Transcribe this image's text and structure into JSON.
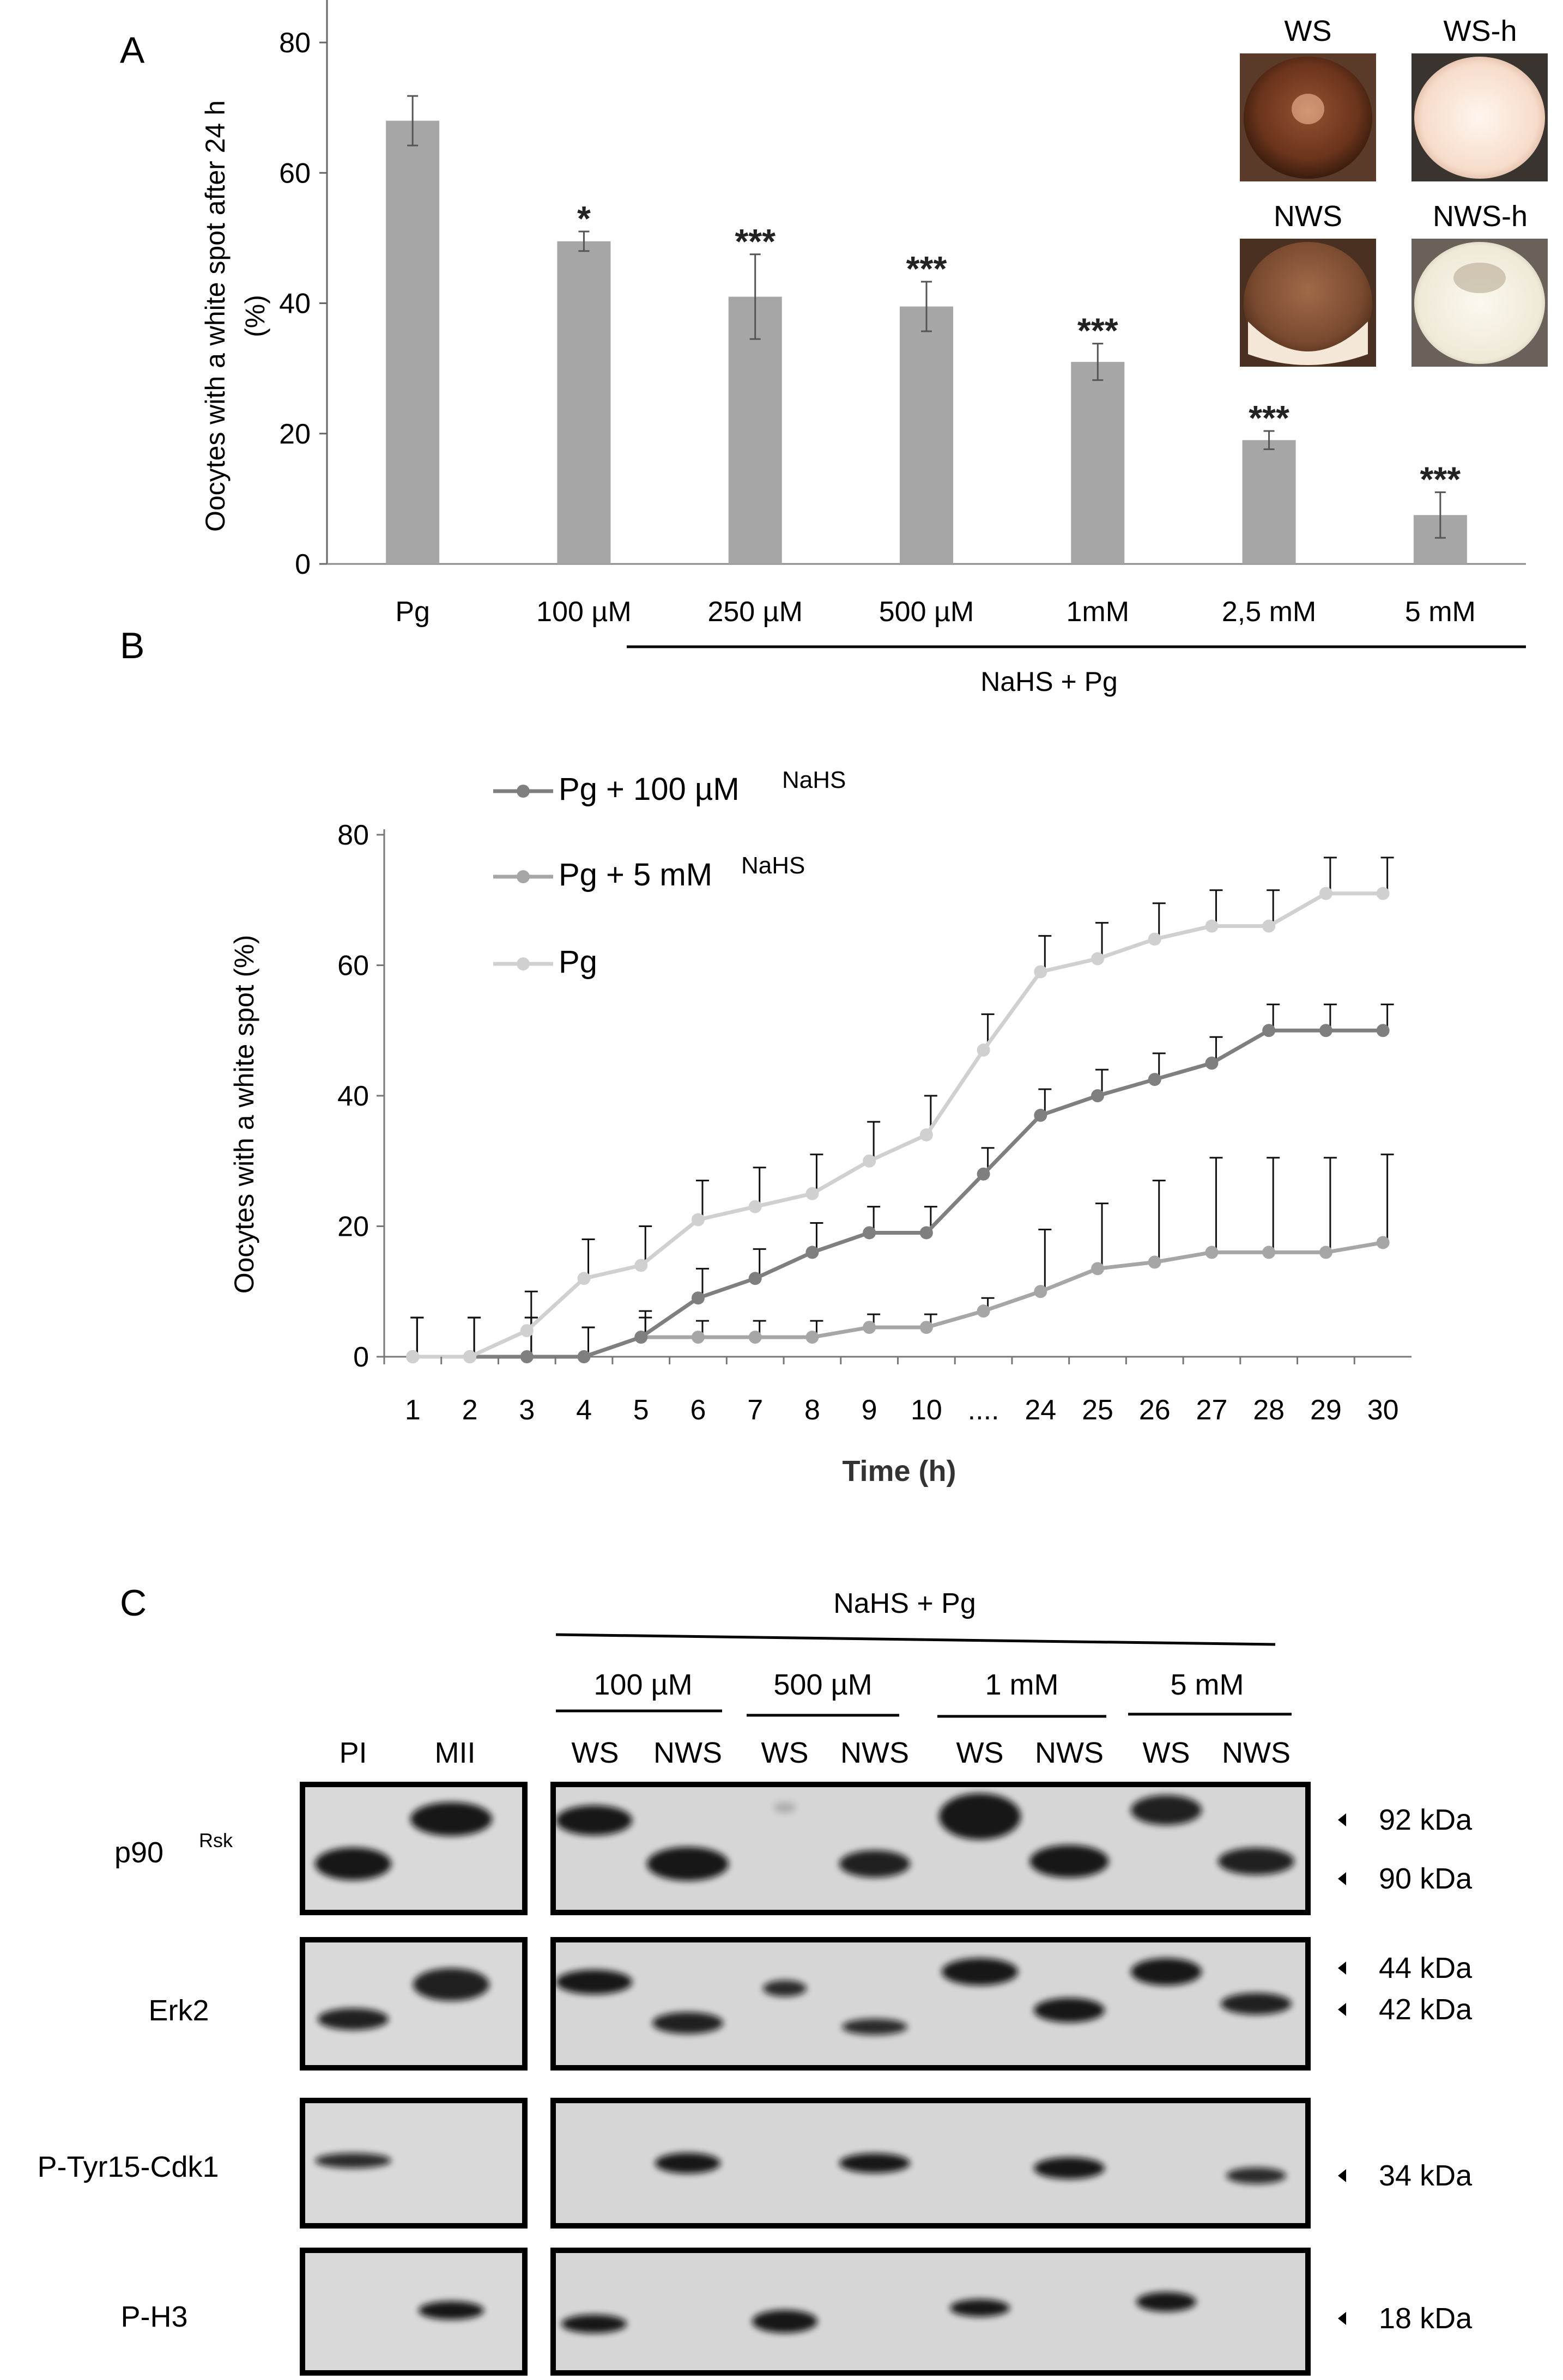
{
  "panels": {
    "a": "A",
    "b": "B",
    "c": "C"
  },
  "chart_data": [
    {
      "type": "bar",
      "panel": "A",
      "ylabel_line1": "Oocytes with a white spot  after 24 h",
      "ylabel_line2": "(%)",
      "ylim": [
        0,
        80
      ],
      "yticks": [
        "0",
        "20",
        "40",
        "60",
        "80"
      ],
      "categories": [
        "Pg",
        "100 µM",
        "250 µM",
        "500 µM",
        "1mM",
        "2,5 mM",
        "5 mM"
      ],
      "values": [
        68,
        49.5,
        41,
        39.5,
        31,
        19,
        7.5
      ],
      "errors": [
        3.8,
        1.5,
        6.5,
        3.8,
        2.8,
        1.4,
        3.5
      ],
      "significance": [
        "",
        "*",
        "***",
        "***",
        "***",
        "***",
        "***"
      ],
      "group_label": "NaHS + Pg",
      "bar_color": "#a6a6a6",
      "insets": [
        "WS",
        "WS-h",
        "NWS",
        "NWS-h"
      ]
    },
    {
      "type": "line",
      "panel": "B",
      "ylabel": "Oocytes with a white spot  (%)",
      "xlabel": "Time (h)",
      "ylim": [
        0,
        80
      ],
      "yticks": [
        "0",
        "20",
        "40",
        "60",
        "80"
      ],
      "categories": [
        "1",
        "2",
        "3",
        "4",
        "5",
        "6",
        "7",
        "8",
        "9",
        "10",
        "....",
        "24",
        "25",
        "26",
        "27",
        "28",
        "29",
        "30"
      ],
      "series": [
        {
          "name": "Pg + 100 µM",
          "name_sup": "NaHS",
          "color": "#7f7f7f",
          "values": [
            0,
            0,
            0,
            0,
            3,
            9,
            12,
            16,
            19,
            19,
            28,
            37,
            40,
            42.5,
            45,
            50,
            50,
            50
          ],
          "errors": [
            6,
            6,
            6,
            4.5,
            4,
            4.5,
            4.5,
            4.5,
            4,
            4,
            4,
            4,
            4,
            4,
            4,
            4,
            4,
            4
          ]
        },
        {
          "name": "Pg + 5 mM",
          "name_sup": "NaHS",
          "color": "#a6a6a6",
          "values": [
            0,
            0,
            0,
            0,
            3,
            3,
            3,
            3,
            4.5,
            4.5,
            7,
            10,
            13.5,
            14.5,
            16,
            16,
            16,
            17.5
          ],
          "errors": [
            6,
            6,
            6,
            4.5,
            3,
            2.5,
            2.5,
            2.5,
            2,
            2,
            2,
            9.5,
            10,
            12.5,
            14.5,
            14.5,
            14.5,
            13.5
          ]
        },
        {
          "name": "Pg",
          "name_sup": "",
          "color": "#d0d0d0",
          "values": [
            0,
            0,
            4,
            12,
            14,
            21,
            23,
            25,
            30,
            34,
            47,
            59,
            61,
            64,
            66,
            66,
            71,
            71
          ],
          "errors": [
            6,
            6,
            6,
            6,
            6,
            6,
            6,
            6,
            6,
            6,
            5.5,
            5.5,
            5.5,
            5.5,
            5.5,
            5.5,
            5.5,
            5.5
          ]
        }
      ]
    }
  ],
  "blot": {
    "title": "NaHS + Pg",
    "conc_labels": [
      "100 µM",
      "500 µM",
      "1 mM",
      "5 mM"
    ],
    "lanes_left": [
      "PI",
      "MII"
    ],
    "lanes_right": [
      "WS",
      "NWS",
      "WS",
      "NWS",
      "WS",
      "NWS",
      "WS",
      "NWS"
    ],
    "rows": [
      {
        "label": "p90",
        "label_sup": "Rsk",
        "markers": [
          "92 kDa",
          "90 kDa"
        ]
      },
      {
        "label": "Erk2",
        "label_sup": "",
        "markers": [
          "44 kDa",
          "42 kDa"
        ]
      },
      {
        "label": "P-Tyr15-Cdk1",
        "label_sup": "",
        "markers": [
          "34 kDa"
        ]
      },
      {
        "label": "P-H3",
        "label_sup": "",
        "markers": [
          "18 kDa"
        ]
      }
    ]
  }
}
